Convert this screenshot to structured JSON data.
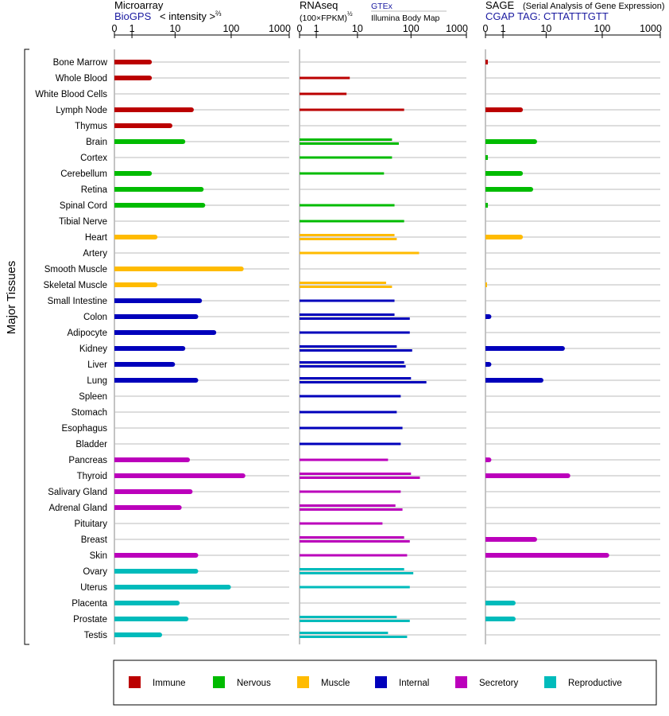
{
  "axis_label": "Major Tissues",
  "colors": {
    "Immune": "#bb0000",
    "Nervous": "#00bb00",
    "Muscle": "#ffbb00",
    "Internal": "#0000bb",
    "Secretory": "#bb00bb",
    "Reproductive": "#00bbbb"
  },
  "legend": [
    "Immune",
    "Nervous",
    "Muscle",
    "Internal",
    "Secretory",
    "Reproductive"
  ],
  "panels": [
    {
      "id": "microarray",
      "title": "Microarray",
      "subtitle": "BioGPS",
      "unit_prefix": "< intensity >",
      "unit_exp": "⅔",
      "ticks": [
        "0",
        "1",
        "10",
        "100",
        "1000"
      ]
    },
    {
      "id": "rnaseq",
      "title": "RNAseq",
      "unit": "(100×FPKM)",
      "unit_exp": "½",
      "source_top": "GTEx",
      "source_bottom": "Illumina Body Map",
      "ticks": [
        "0",
        "1",
        "10",
        "100",
        "1000"
      ]
    },
    {
      "id": "sage",
      "title": "SAGE",
      "title_note": "(Serial Analysis of Gene Expression)",
      "subtitle": "CGAP  TAG: CTTATTTGTT",
      "ticks": [
        "0",
        "1",
        "10",
        "100",
        "1000"
      ]
    }
  ],
  "chart_data": {
    "type": "bar",
    "xscale": "log(1+x)",
    "xlim": [
      0,
      1000
    ],
    "categories": [
      "Bone Marrow",
      "Whole Blood",
      "White Blood Cells",
      "Lymph Node",
      "Thymus",
      "Brain",
      "Cortex",
      "Cerebellum",
      "Retina",
      "Spinal Cord",
      "Tibial Nerve",
      "Heart",
      "Artery",
      "Smooth Muscle",
      "Skeletal Muscle",
      "Small Intestine",
      "Colon",
      "Adipocyte",
      "Kidney",
      "Liver",
      "Lung",
      "Spleen",
      "Stomach",
      "Esophagus",
      "Bladder",
      "Pancreas",
      "Thyroid",
      "Salivary Gland",
      "Adrenal Gland",
      "Pituitary",
      "Breast",
      "Skin",
      "Ovary",
      "Uterus",
      "Placenta",
      "Prostate",
      "Testis"
    ],
    "groups": [
      "Immune",
      "Immune",
      "Immune",
      "Immune",
      "Immune",
      "Nervous",
      "Nervous",
      "Nervous",
      "Nervous",
      "Nervous",
      "Nervous",
      "Muscle",
      "Muscle",
      "Muscle",
      "Muscle",
      "Internal",
      "Internal",
      "Internal",
      "Internal",
      "Internal",
      "Internal",
      "Internal",
      "Internal",
      "Internal",
      "Internal",
      "Secretory",
      "Secretory",
      "Secretory",
      "Secretory",
      "Secretory",
      "Secretory",
      "Secretory",
      "Reproductive",
      "Reproductive",
      "Reproductive",
      "Reproductive",
      "Reproductive"
    ],
    "series": [
      {
        "panel": "microarray",
        "values": [
          3,
          3,
          null,
          20,
          8,
          14,
          null,
          3,
          30,
          32,
          null,
          4,
          null,
          150,
          4,
          28,
          24,
          50,
          14,
          9,
          24,
          null,
          null,
          null,
          null,
          17,
          160,
          19,
          12,
          null,
          null,
          24,
          24,
          90,
          11,
          16,
          5
        ]
      },
      {
        "panel": "rnaseq",
        "name": "GTEx",
        "values": [
          null,
          7,
          6,
          75,
          null,
          45,
          45,
          32,
          null,
          50,
          75,
          50,
          140,
          null,
          35,
          50,
          50,
          null,
          55,
          75,
          100,
          65,
          55,
          70,
          65,
          38,
          100,
          65,
          52,
          30,
          75,
          85,
          75,
          95,
          null,
          55,
          38
        ]
      },
      {
        "panel": "rnaseq",
        "name": "Illumina Body Map",
        "values": [
          null,
          null,
          null,
          null,
          null,
          60,
          null,
          null,
          null,
          null,
          null,
          55,
          null,
          null,
          45,
          null,
          95,
          95,
          105,
          80,
          190,
          null,
          null,
          null,
          null,
          null,
          145,
          null,
          70,
          null,
          95,
          null,
          110,
          null,
          null,
          95,
          85
        ]
      },
      {
        "panel": "sage",
        "values": [
          0.1,
          null,
          null,
          3,
          null,
          6,
          0.1,
          3,
          5,
          0.1,
          null,
          3,
          null,
          null,
          0.05,
          null,
          0.15,
          null,
          20,
          0.15,
          8,
          null,
          null,
          null,
          null,
          0.15,
          25,
          null,
          null,
          null,
          6,
          120,
          null,
          null,
          2,
          2,
          null
        ]
      }
    ]
  }
}
